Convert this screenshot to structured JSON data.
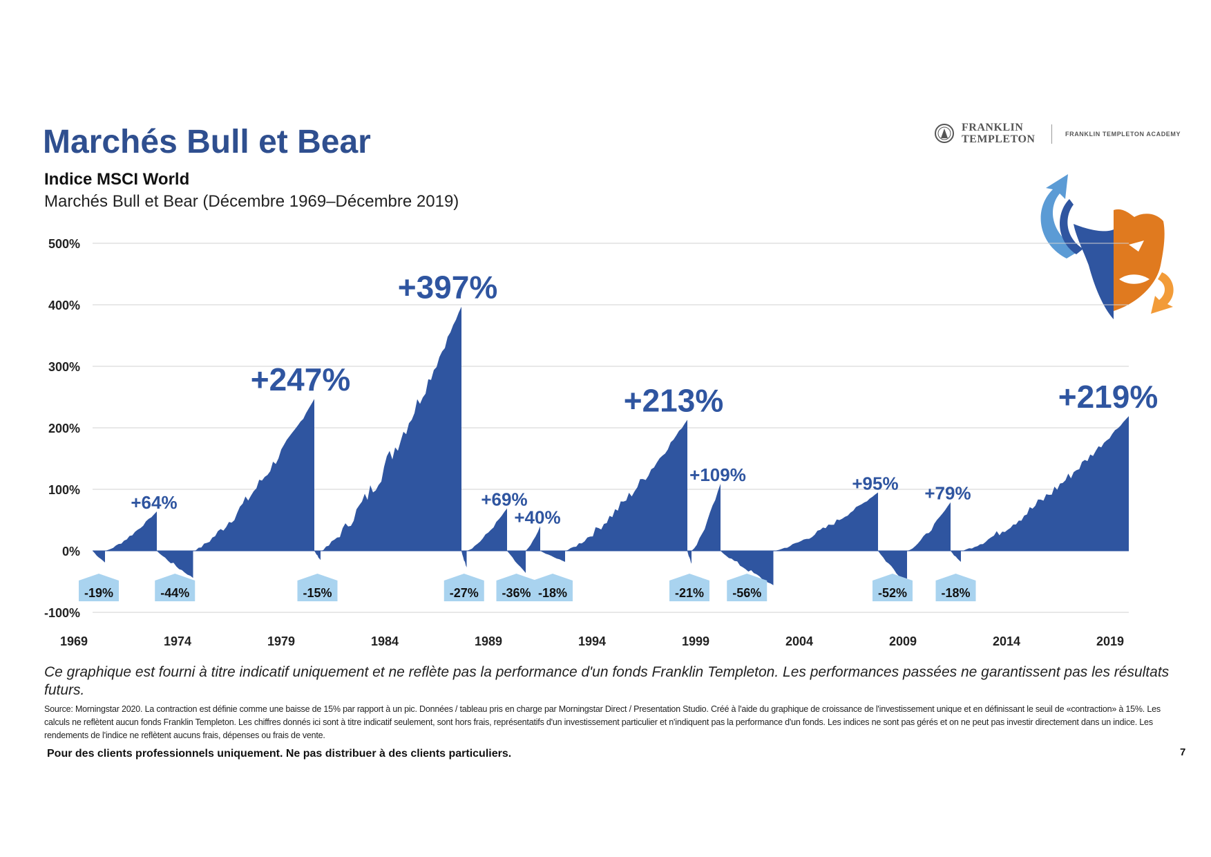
{
  "header": {
    "title": "Marchés Bull et Bear",
    "subtitle_bold": "Indice MSCI World",
    "subtitle": "Marchés Bull et Bear (Décembre 1969–Décembre 2019)"
  },
  "logo": {
    "brand_line1": "FRANKLIN",
    "brand_line2": "TEMPLETON",
    "academy": "FRANKLIN TEMPLETON ACADEMY"
  },
  "colors": {
    "title": "#2f4f8f",
    "bull": "#2f55a0",
    "bear_label_bg": "#a9d3ef",
    "mascot_orange": "#e07a1f"
  },
  "chart_data": {
    "type": "area",
    "yticks": [
      "500%",
      "400%",
      "300%",
      "200%",
      "100%",
      "0%",
      "-100%"
    ],
    "ylim": [
      -100,
      500
    ],
    "xticks": [
      "1969",
      "1974",
      "1979",
      "1984",
      "1989",
      "1994",
      "1999",
      "2004",
      "2009",
      "2014",
      "2019"
    ],
    "xlim": [
      1969.9,
      2019.9
    ],
    "grid": true,
    "periods": [
      {
        "type": "bear",
        "start": 1969.9,
        "end": 1970.5,
        "value": -19,
        "label": "-19%"
      },
      {
        "type": "bull",
        "start": 1970.5,
        "end": 1973.0,
        "value": 64,
        "label": "+64%"
      },
      {
        "type": "bear",
        "start": 1973.0,
        "end": 1974.75,
        "value": -44,
        "label": "-44%"
      },
      {
        "type": "bull",
        "start": 1974.75,
        "end": 1980.6,
        "value": 247,
        "label": "+247%"
      },
      {
        "type": "bear",
        "start": 1980.6,
        "end": 1980.9,
        "value": -15,
        "label": "-15%"
      },
      {
        "type": "bull",
        "start": 1980.9,
        "end": 1987.7,
        "value": 397,
        "label": "+397%"
      },
      {
        "type": "bear",
        "start": 1987.7,
        "end": 1987.95,
        "value": -27,
        "label": "-27%"
      },
      {
        "type": "bull",
        "start": 1987.95,
        "end": 1989.9,
        "value": 69,
        "label": "+69%"
      },
      {
        "type": "bear",
        "start": 1989.9,
        "end": 1990.8,
        "value": -36,
        "label": "-36%"
      },
      {
        "type": "bull",
        "start": 1990.8,
        "end": 1991.5,
        "value": 40,
        "label": "+40%"
      },
      {
        "type": "bear",
        "start": 1991.5,
        "end": 1992.7,
        "value": -18,
        "label": "-18%"
      },
      {
        "type": "bull",
        "start": 1992.7,
        "end": 1998.6,
        "value": 213,
        "label": "+213%"
      },
      {
        "type": "bear",
        "start": 1998.6,
        "end": 1998.8,
        "value": -21,
        "label": "-21%"
      },
      {
        "type": "bull",
        "start": 1998.8,
        "end": 2000.2,
        "value": 109,
        "label": "+109%"
      },
      {
        "type": "bear",
        "start": 2000.2,
        "end": 2002.75,
        "value": -56,
        "label": "-56%"
      },
      {
        "type": "bull",
        "start": 2002.75,
        "end": 2007.8,
        "value": 95,
        "label": "+95%"
      },
      {
        "type": "bear",
        "start": 2007.8,
        "end": 2009.2,
        "value": -52,
        "label": "-52%"
      },
      {
        "type": "bull",
        "start": 2009.2,
        "end": 2011.3,
        "value": 79,
        "label": "+79%"
      },
      {
        "type": "bear",
        "start": 2011.3,
        "end": 2011.8,
        "value": -18,
        "label": "-18%"
      },
      {
        "type": "bull",
        "start": 2011.8,
        "end": 2019.9,
        "value": 219,
        "label": "+219%"
      }
    ]
  },
  "footer": {
    "disclaimer": "Ce graphique est fourni à titre indicatif uniquement et ne reflète pas la performance d'un fonds Franklin Templeton. Les performances passées ne garantissent pas les résultats futurs.",
    "source": "Source: Morningstar 2020. La contraction est définie comme une baisse de 15% par rapport à un pic. Données / tableau pris en charge par Morningstar Direct / Presentation Studio. Créé à l'aide du graphique de croissance de l'investissement unique et en définissant le seuil de «contraction» à 15%. Les calculs ne reflètent aucun fonds Franklin Templeton. Les chiffres donnés ici sont à titre indicatif seulement, sont hors frais, représentatifs d'un investissement particulier et n'indiquent pas la performance d'un fonds. Les indices ne sont pas gérés et on ne peut pas investir directement dans un indice. Les rendements de l'indice ne reflètent aucuns frais, dépenses ou frais de vente.",
    "pro_note": "Pour des clients professionnels uniquement. Ne pas distribuer à des clients particuliers.",
    "page_number": "7"
  }
}
